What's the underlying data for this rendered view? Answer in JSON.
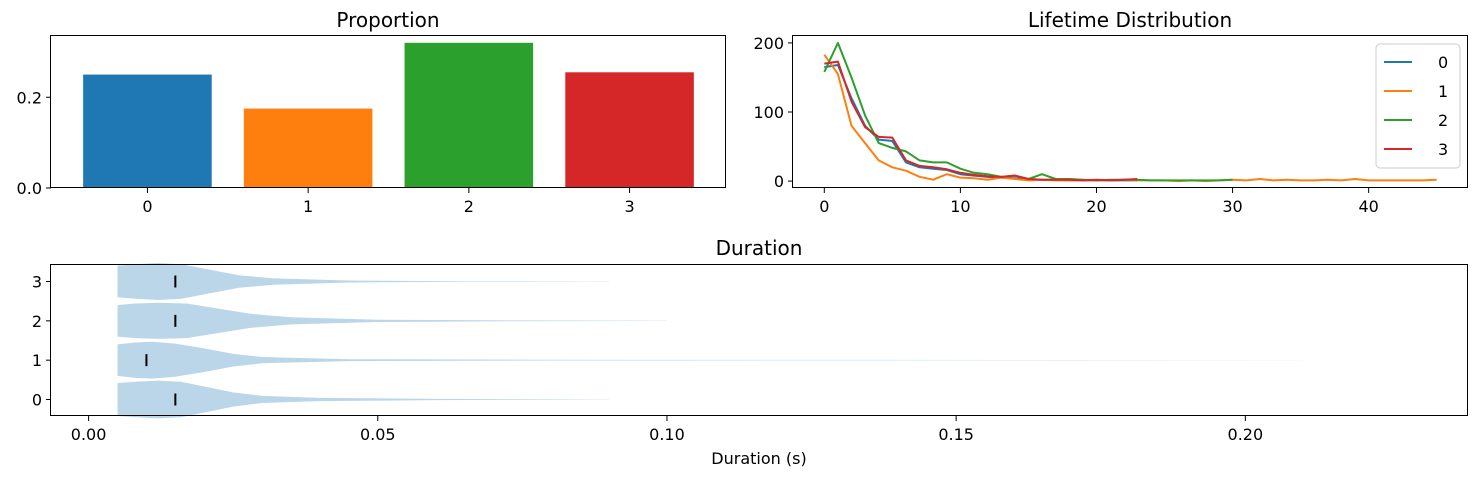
{
  "chart_data": [
    {
      "type": "bar",
      "title": "Proportion",
      "categories": [
        "0",
        "1",
        "2",
        "3"
      ],
      "values": [
        0.25,
        0.175,
        0.32,
        0.255
      ],
      "ylim": [
        0,
        0.335
      ],
      "yticks": [
        0.0,
        0.2
      ],
      "ytick_labels": [
        "0.0",
        "0.2"
      ],
      "colors": [
        "#1f77b4",
        "#ff7f0e",
        "#2ca02c",
        "#d62728"
      ]
    },
    {
      "type": "line",
      "title": "Lifetime Distribution",
      "xlim": [
        -2.3,
        47.3
      ],
      "ylim": [
        -10,
        210
      ],
      "xticks": [
        0,
        10,
        20,
        30,
        40
      ],
      "yticks": [
        0,
        100,
        200
      ],
      "legend_position": "upper-right",
      "series": [
        {
          "name": "0",
          "color": "#1f77b4",
          "x": [
            0,
            1,
            2,
            3,
            4,
            5,
            6,
            7,
            8,
            9,
            10,
            11,
            12,
            13,
            14,
            15,
            16,
            17,
            18,
            19,
            20,
            21,
            22,
            23
          ],
          "y": [
            165,
            168,
            120,
            80,
            60,
            58,
            27,
            20,
            18,
            16,
            10,
            8,
            6,
            5,
            4,
            3,
            2,
            2,
            1,
            1,
            1,
            1,
            1,
            1
          ]
        },
        {
          "name": "1",
          "color": "#ff7f0e",
          "x": [
            0,
            1,
            2,
            3,
            4,
            5,
            6,
            7,
            8,
            9,
            10,
            11,
            12,
            13,
            14,
            15,
            16,
            17,
            18,
            19,
            20,
            21,
            22,
            23,
            24,
            25,
            26,
            27,
            28,
            29,
            30,
            31,
            32,
            33,
            34,
            35,
            36,
            37,
            38,
            39,
            40,
            41,
            42,
            43,
            44,
            45
          ],
          "y": [
            183,
            155,
            80,
            55,
            30,
            20,
            15,
            6,
            2,
            10,
            5,
            4,
            2,
            5,
            3,
            1,
            2,
            1,
            1,
            1,
            1,
            1,
            2,
            1,
            1,
            1,
            0,
            1,
            0,
            1,
            2,
            1,
            3,
            1,
            2,
            1,
            1,
            2,
            1,
            3,
            1,
            1,
            1,
            1,
            1,
            2
          ]
        },
        {
          "name": "2",
          "color": "#2ca02c",
          "x": [
            0,
            1,
            2,
            3,
            4,
            5,
            6,
            7,
            8,
            9,
            10,
            11,
            12,
            13,
            14,
            15,
            16,
            17,
            18,
            19,
            20,
            21,
            22,
            23,
            24,
            25,
            26,
            27,
            28,
            29,
            30
          ],
          "y": [
            158,
            200,
            150,
            95,
            55,
            48,
            43,
            30,
            27,
            27,
            18,
            12,
            10,
            6,
            8,
            3,
            10,
            3,
            3,
            2,
            1,
            2,
            2,
            2,
            1,
            1,
            1,
            1,
            1,
            1,
            2
          ]
        },
        {
          "name": "3",
          "color": "#d62728",
          "x": [
            0,
            1,
            2,
            3,
            4,
            5,
            6,
            7,
            8,
            9,
            10,
            11,
            12,
            13,
            14,
            15,
            16,
            17,
            18,
            19,
            20,
            21,
            22,
            23
          ],
          "y": [
            170,
            173,
            115,
            78,
            64,
            63,
            30,
            22,
            20,
            17,
            12,
            9,
            7,
            6,
            8,
            3,
            2,
            2,
            2,
            1,
            2,
            1,
            2,
            3
          ]
        }
      ]
    },
    {
      "type": "violin",
      "title": "Duration",
      "xlabel": "Duration (s)",
      "xlim": [
        -0.0065,
        0.2385
      ],
      "xticks": [
        0.0,
        0.05,
        0.1,
        0.15,
        0.2
      ],
      "xtick_labels": [
        "0.00",
        "0.05",
        "0.10",
        "0.15",
        "0.20"
      ],
      "categories": [
        "0",
        "1",
        "2",
        "3"
      ],
      "color": "#bcd6e9",
      "series": [
        {
          "name": "0",
          "min": 0.005,
          "max": 0.09,
          "median": 0.015,
          "profile": [
            [
              0.005,
              0.42
            ],
            [
              0.008,
              0.45
            ],
            [
              0.012,
              0.48
            ],
            [
              0.016,
              0.45
            ],
            [
              0.02,
              0.33
            ],
            [
              0.025,
              0.18
            ],
            [
              0.03,
              0.09
            ],
            [
              0.04,
              0.04
            ],
            [
              0.06,
              0.015
            ],
            [
              0.09,
              0.003
            ]
          ]
        },
        {
          "name": "1",
          "min": 0.005,
          "max": 0.21,
          "median": 0.01,
          "profile": [
            [
              0.005,
              0.4
            ],
            [
              0.008,
              0.45
            ],
            [
              0.011,
              0.47
            ],
            [
              0.015,
              0.42
            ],
            [
              0.02,
              0.3
            ],
            [
              0.025,
              0.16
            ],
            [
              0.03,
              0.08
            ],
            [
              0.045,
              0.025
            ],
            [
              0.08,
              0.008
            ],
            [
              0.21,
              0.002
            ]
          ]
        },
        {
          "name": "2",
          "min": 0.005,
          "max": 0.1,
          "median": 0.015,
          "profile": [
            [
              0.005,
              0.4
            ],
            [
              0.008,
              0.44
            ],
            [
              0.012,
              0.46
            ],
            [
              0.017,
              0.44
            ],
            [
              0.022,
              0.32
            ],
            [
              0.028,
              0.18
            ],
            [
              0.035,
              0.09
            ],
            [
              0.05,
              0.03
            ],
            [
              0.075,
              0.01
            ],
            [
              0.1,
              0.003
            ]
          ]
        },
        {
          "name": "3",
          "min": 0.005,
          "max": 0.09,
          "median": 0.015,
          "profile": [
            [
              0.005,
              0.4
            ],
            [
              0.008,
              0.44
            ],
            [
              0.012,
              0.47
            ],
            [
              0.016,
              0.44
            ],
            [
              0.021,
              0.3
            ],
            [
              0.026,
              0.16
            ],
            [
              0.032,
              0.08
            ],
            [
              0.045,
              0.025
            ],
            [
              0.065,
              0.008
            ],
            [
              0.09,
              0.002
            ]
          ]
        }
      ]
    }
  ]
}
